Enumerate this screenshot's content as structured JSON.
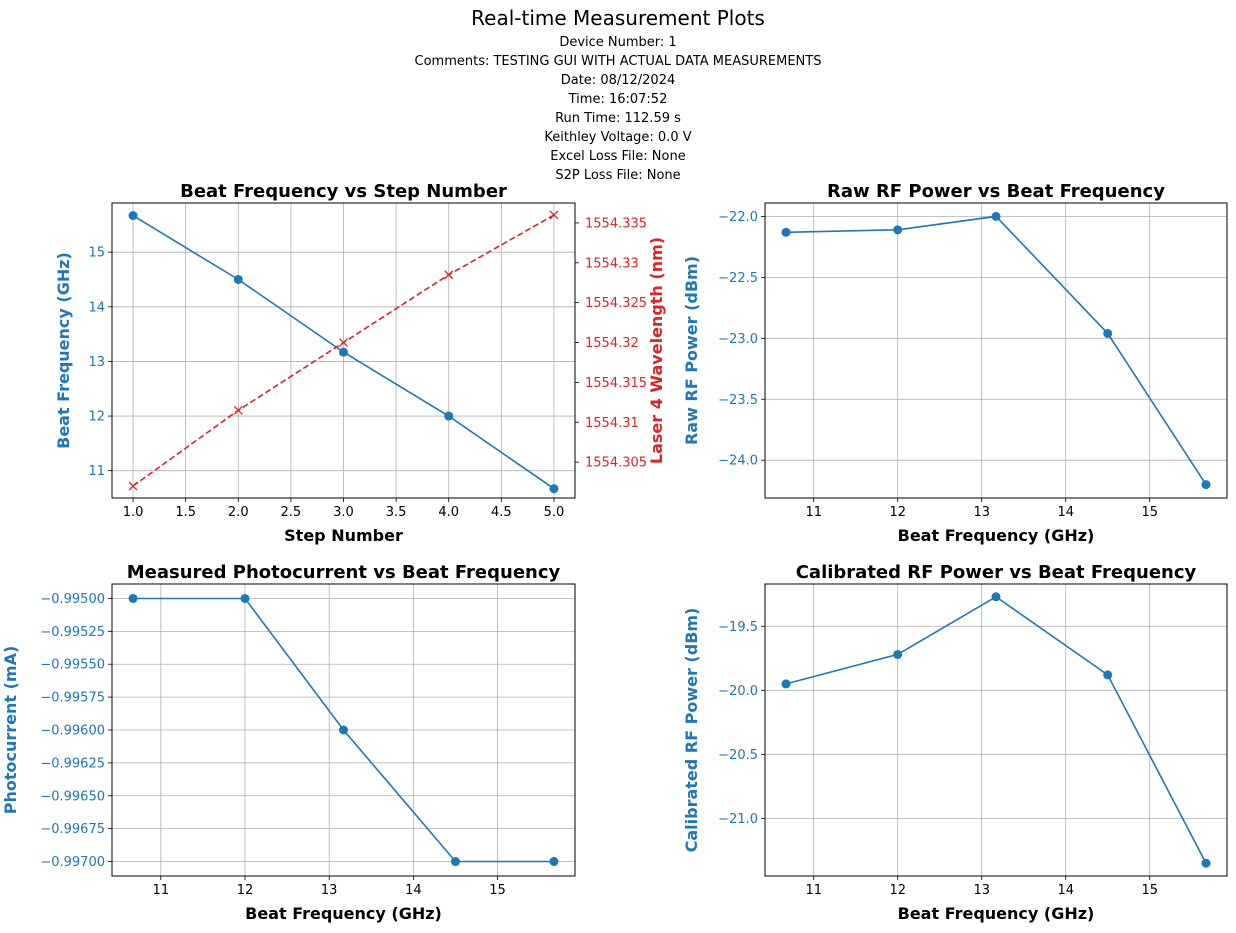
{
  "header": {
    "title": "Real-time Measurement Plots",
    "meta": [
      "Device Number: 1",
      "Comments: TESTING GUI WITH ACTUAL DATA MEASUREMENTS",
      "Date: 08/12/2024",
      "Time: 16:07:52",
      "Run Time: 112.59 s",
      "Keithley Voltage: 0.0 V",
      "Excel Loss File: None",
      "S2P Loss File: None"
    ]
  },
  "colors": {
    "blue": "#1f77b4",
    "red": "#d62728",
    "grid": "#b0b0b0"
  },
  "chart_data": [
    {
      "type": "line",
      "title": "Beat Frequency vs Step Number",
      "xlabel": "Step Number",
      "ylabel": "Beat Frequency (GHz)",
      "y2label": "Laser 4 Wavelength (nm)",
      "grid": true,
      "x": [
        1,
        2,
        3,
        4,
        5
      ],
      "xlim": [
        0.8,
        5.2
      ],
      "ylim": [
        10.5,
        15.9
      ],
      "y2lim": [
        1554.3005,
        1554.3375
      ],
      "xticks": [
        1.0,
        1.5,
        2.0,
        2.5,
        3.0,
        3.5,
        4.0,
        4.5,
        5.0
      ],
      "xtick_labels": [
        "1.0",
        "1.5",
        "2.0",
        "2.5",
        "3.0",
        "3.5",
        "4.0",
        "4.5",
        "5.0"
      ],
      "yticks": [
        11,
        12,
        13,
        14,
        15
      ],
      "ytick_labels": [
        "11",
        "12",
        "13",
        "14",
        "15"
      ],
      "y2ticks": [
        1554.305,
        1554.31,
        1554.315,
        1554.32,
        1554.325,
        1554.33,
        1554.335
      ],
      "y2tick_labels": [
        "1554.305",
        "1554.31",
        "1554.315",
        "1554.32",
        "1554.325",
        "1554.33",
        "1554.335"
      ],
      "series": [
        {
          "values": [
            15.67,
            14.5,
            13.17,
            12.0,
            10.67
          ],
          "axis": "left",
          "color": "#1f77b4",
          "marker": "circle",
          "line": "solid"
        },
        {
          "values": [
            1554.302,
            1554.3115,
            1554.32,
            1554.3285,
            1554.336
          ],
          "axis": "right",
          "color": "#d62728",
          "marker": "x",
          "line": "dashed"
        }
      ]
    },
    {
      "type": "line",
      "title": "Raw RF Power vs Beat Frequency",
      "xlabel": "Beat Frequency (GHz)",
      "ylabel": "Raw RF Power (dBm)",
      "grid": true,
      "x": [
        10.67,
        12.0,
        13.17,
        14.5,
        15.67
      ],
      "xlim": [
        10.42,
        15.92
      ],
      "ylim": [
        -24.31,
        -21.89
      ],
      "xticks": [
        11,
        12,
        13,
        14,
        15
      ],
      "xtick_labels": [
        "11",
        "12",
        "13",
        "14",
        "15"
      ],
      "yticks": [
        -22.0,
        -22.5,
        -23.0,
        -23.5,
        -24.0
      ],
      "ytick_labels": [
        "−22.0",
        "−22.5",
        "−23.0",
        "−23.5",
        "−24.0"
      ],
      "series": [
        {
          "values": [
            -22.13,
            -22.11,
            -22.0,
            -22.96,
            -24.2
          ],
          "axis": "left",
          "color": "#1f77b4",
          "marker": "circle",
          "line": "solid"
        }
      ]
    },
    {
      "type": "line",
      "title": "Measured Photocurrent vs Beat Frequency",
      "xlabel": "Beat Frequency (GHz)",
      "ylabel": "Photocurrent (mA)",
      "grid": true,
      "x": [
        10.67,
        12.0,
        13.17,
        14.5,
        15.67
      ],
      "xlim": [
        10.42,
        15.92
      ],
      "ylim": [
        -0.99711,
        -0.99489
      ],
      "xticks": [
        11,
        12,
        13,
        14,
        15
      ],
      "xtick_labels": [
        "11",
        "12",
        "13",
        "14",
        "15"
      ],
      "yticks": [
        -0.995,
        -0.99525,
        -0.9955,
        -0.99575,
        -0.996,
        -0.99625,
        -0.9965,
        -0.99675,
        -0.997
      ],
      "ytick_labels": [
        "−0.99500",
        "−0.99525",
        "−0.99550",
        "−0.99575",
        "−0.99600",
        "−0.99625",
        "−0.99650",
        "−0.99675",
        "−0.99700"
      ],
      "series": [
        {
          "values": [
            -0.995,
            -0.995,
            -0.996,
            -0.997,
            -0.997
          ],
          "axis": "left",
          "color": "#1f77b4",
          "marker": "circle",
          "line": "solid"
        }
      ]
    },
    {
      "type": "line",
      "title": "Calibrated RF Power vs Beat Frequency",
      "xlabel": "Beat Frequency (GHz)",
      "ylabel": "Calibrated RF Power (dBm)",
      "grid": true,
      "x": [
        10.67,
        12.0,
        13.17,
        14.5,
        15.67
      ],
      "xlim": [
        10.42,
        15.92
      ],
      "ylim": [
        -21.45,
        -19.17
      ],
      "xticks": [
        11,
        12,
        13,
        14,
        15
      ],
      "xtick_labels": [
        "11",
        "12",
        "13",
        "14",
        "15"
      ],
      "yticks": [
        -19.5,
        -20.0,
        -20.5,
        -21.0
      ],
      "ytick_labels": [
        "−19.5",
        "−20.0",
        "−20.5",
        "−21.0"
      ],
      "series": [
        {
          "values": [
            -19.95,
            -19.72,
            -19.27,
            -19.88,
            -21.35
          ],
          "axis": "left",
          "color": "#1f77b4",
          "marker": "circle",
          "line": "solid"
        }
      ]
    }
  ]
}
